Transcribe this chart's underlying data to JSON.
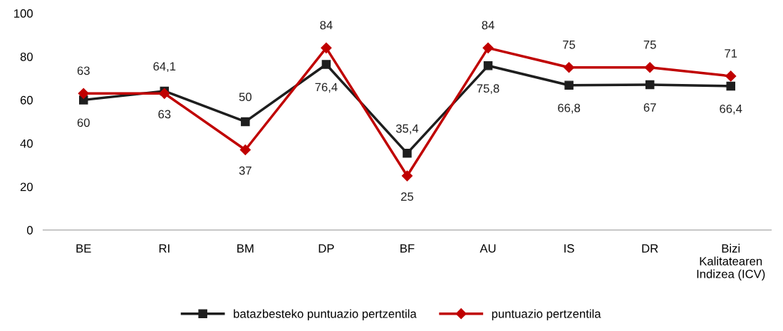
{
  "chart_data": {
    "type": "line",
    "categories": [
      "BE",
      "RI",
      "BM",
      "DP",
      "BF",
      "AU",
      "IS",
      "DR",
      "Bizi\nKalitatearen\nIndizea (ICV)"
    ],
    "series": [
      {
        "name": "batazbesteko puntuazio pertzentila",
        "color": "#1e1e1e",
        "marker": "square",
        "values": [
          60,
          64.1,
          50,
          76.4,
          35.4,
          75.8,
          66.8,
          67,
          66.4
        ],
        "value_labels": [
          "60",
          "64,1",
          "50",
          "76,4",
          "35,4",
          "75,8",
          "66,8",
          "67",
          "66,4"
        ]
      },
      {
        "name": "puntuazio pertzentila",
        "color": "#c00000",
        "marker": "diamond",
        "values": [
          63,
          63,
          37,
          84,
          25,
          84,
          75,
          75,
          71
        ],
        "value_labels": [
          "63",
          "63",
          "37",
          "84",
          "25",
          "84",
          "75",
          "75",
          "71"
        ]
      }
    ],
    "ylim": [
      0,
      100
    ],
    "yticks": [
      0,
      20,
      40,
      60,
      80,
      100
    ],
    "grid": false,
    "legend": "bottom",
    "line_style": "solid"
  }
}
